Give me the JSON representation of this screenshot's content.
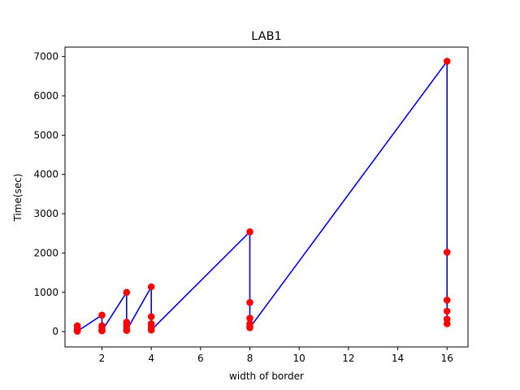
{
  "chart_data": {
    "type": "scatter",
    "title": "LAB1",
    "xlabel": "width of border",
    "ylabel": "Time(sec)",
    "xlim": [
      0.5,
      16.85
    ],
    "ylim": [
      -390,
      7240
    ],
    "xticks": [
      2,
      4,
      6,
      8,
      10,
      12,
      14,
      16
    ],
    "yticks": [
      0,
      1000,
      2000,
      3000,
      4000,
      5000,
      6000,
      7000
    ],
    "grid": false,
    "line_color": "#0000ff",
    "marker_color": "#ff0000",
    "x": [
      1,
      1,
      1,
      1,
      1,
      1,
      2,
      2,
      2,
      2,
      2,
      2,
      3,
      3,
      3,
      3,
      3,
      3,
      4,
      4,
      4,
      4,
      4,
      4,
      8,
      8,
      8,
      8,
      8,
      8,
      16,
      16,
      16,
      16,
      16,
      16
    ],
    "y": [
      150,
      80,
      50,
      30,
      20,
      10,
      420,
      150,
      90,
      40,
      30,
      20,
      1000,
      240,
      150,
      60,
      40,
      30,
      1140,
      380,
      200,
      120,
      60,
      40,
      2540,
      740,
      340,
      200,
      130,
      100,
      6880,
      2020,
      800,
      520,
      320,
      200
    ]
  }
}
